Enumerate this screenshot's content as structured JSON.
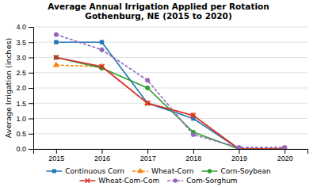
{
  "chart_data": {
    "type": "line",
    "title": "Average Annual Irrigation Applied per Rotation\nGothenburg, NE (2015 to 2020)",
    "y_label": "Average Irrigation (inches)",
    "x": [
      2015,
      2016,
      2017,
      2018,
      2019,
      2020
    ],
    "xlim": [
      2014.5,
      2020.5
    ],
    "xticks": [
      2015,
      2016,
      2017,
      2018,
      2019,
      2020
    ],
    "ylim": [
      0.0,
      4.0
    ],
    "yticks": [
      {
        "value": 0.0,
        "label": "0.0"
      },
      0.5,
      {
        "value": 1.0,
        "label": "1.0"
      },
      1.5,
      {
        "value": 2.0,
        "label": "2.0"
      },
      2.5,
      {
        "value": 3.0,
        "label": "3.0"
      },
      3.5,
      {
        "value": 4.0,
        "label": "4.0"
      }
    ],
    "grid": true,
    "legend": "bottom",
    "series": [
      {
        "name": "Continuous Corn",
        "values": [
          3.5,
          3.5,
          1.5,
          1.0,
          0.0,
          0.0
        ],
        "marker": "square",
        "line_style": "solid"
      },
      {
        "name": "Wheat-Corn",
        "values": [
          2.75,
          2.7,
          1.5,
          1.1,
          0.0,
          0.0
        ],
        "marker": "triangle",
        "line_style": "dashed"
      },
      {
        "name": "Corn-Soybean",
        "values": [
          3.0,
          2.65,
          2.0,
          0.55,
          0.0,
          0.0
        ],
        "marker": "circle",
        "line_style": "solid"
      },
      {
        "name": "Wheat-Com-Com",
        "values": [
          3.0,
          2.7,
          1.5,
          1.1,
          0.0,
          0.0
        ],
        "marker": "x",
        "line_style": "solid"
      },
      {
        "name": "Com-Sorghum",
        "values": [
          3.75,
          3.25,
          2.25,
          0.47,
          0.05,
          0.05
        ],
        "marker": "circle",
        "line_style": "dashed"
      }
    ]
  }
}
